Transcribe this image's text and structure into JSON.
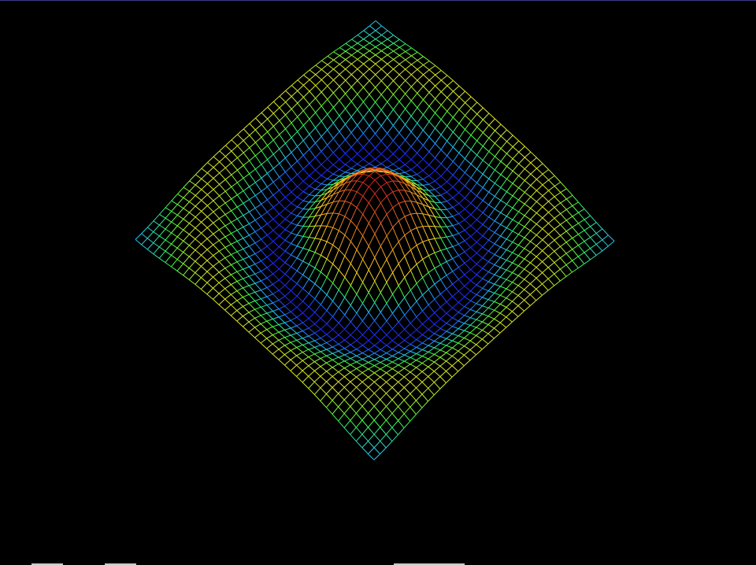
{
  "scene": {
    "background": "#000000",
    "object": "wireframe-surface",
    "colormap": [
      "#d42020",
      "#ffe020",
      "#40ff40",
      "#20c0ff",
      "#2020ff"
    ],
    "grid_divisions": 40
  }
}
